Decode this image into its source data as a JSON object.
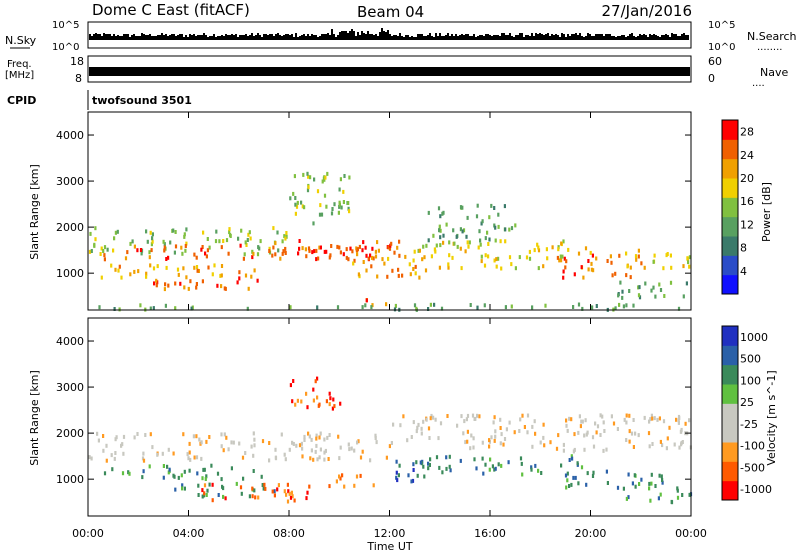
{
  "header": {
    "station": "Dome C East (fitACF)",
    "beam": "Beam 04",
    "date": "27/Jan/2016"
  },
  "nsky_panel": {
    "left_label": "N.Sky",
    "left_ticks": [
      "10^5",
      "10^0"
    ],
    "right_ticks": [
      "10^5",
      "10^0"
    ],
    "right_label": "N.Search",
    "right_dots": "........"
  },
  "freq_panel": {
    "label_line1": "Freq.",
    "label_line2": "[MHz]",
    "left_ticks": [
      "18",
      "8"
    ],
    "right_ticks": [
      "60",
      "0"
    ],
    "right_label": "Nave",
    "right_dots": "...."
  },
  "cpid_panel": {
    "label": "CPID",
    "value": "twofsound 3501"
  },
  "colors": {
    "power": [
      "#1010ff",
      "#2a4cc8",
      "#3a7a6a",
      "#58a060",
      "#80c040",
      "#f0d000",
      "#f0a000",
      "#f06000",
      "#ff0000"
    ],
    "velocity": [
      "#ff0000",
      "#ff5a00",
      "#ff9a20",
      "#c8c8c0",
      "#c8c8c0",
      "#60c040",
      "#3a8a5a",
      "#2a60a8",
      "#2030c0"
    ]
  },
  "chart_data": [
    {
      "type": "heatmap",
      "title": "",
      "xlabel": "",
      "ylabel": "Slant Range [km]",
      "x_ticks": [
        "00:00",
        "04:00",
        "08:00",
        "12:00",
        "16:00",
        "20:00",
        "00:00"
      ],
      "y_ticks": [
        "1000",
        "2000",
        "3000",
        "4000"
      ],
      "ylim": [
        200,
        4500
      ],
      "xlim_hours": [
        0,
        24
      ],
      "colorbar": {
        "label": "Power [dB]",
        "ticks": [
          "4",
          "8",
          "12",
          "16",
          "20",
          "24",
          "28"
        ],
        "range": [
          0,
          30
        ]
      },
      "bands": [
        {
          "t0": 0.0,
          "t1": 8.0,
          "r0": 1400,
          "r1": 2000,
          "value": 16
        },
        {
          "t0": 0.5,
          "t1": 12.0,
          "r0": 1300,
          "r1": 1600,
          "value": 26
        },
        {
          "t0": 0.5,
          "t1": 7.0,
          "r0": 900,
          "r1": 1200,
          "value": 20
        },
        {
          "t0": 2.5,
          "t1": 7.0,
          "r0": 600,
          "r1": 900,
          "value": 24
        },
        {
          "t0": 7.0,
          "t1": 12.5,
          "r0": 1300,
          "r1": 1700,
          "value": 26
        },
        {
          "t0": 8.0,
          "t1": 10.5,
          "r0": 2000,
          "r1": 3200,
          "value": 14
        },
        {
          "t0": 10.5,
          "t1": 13.5,
          "r0": 900,
          "r1": 1500,
          "value": 22
        },
        {
          "t0": 11.0,
          "t1": 12.5,
          "r0": 300,
          "r1": 450,
          "value": 26
        },
        {
          "t0": 13.0,
          "t1": 20.0,
          "r0": 1100,
          "r1": 1700,
          "value": 18
        },
        {
          "t0": 13.5,
          "t1": 17.0,
          "r0": 1700,
          "r1": 2500,
          "value": 12
        },
        {
          "t0": 18.5,
          "t1": 22.0,
          "r0": 900,
          "r1": 1400,
          "value": 24
        },
        {
          "t0": 21.0,
          "t1": 24.0,
          "r0": 1100,
          "r1": 1500,
          "value": 18
        },
        {
          "t0": 21.0,
          "t1": 24.0,
          "r0": 400,
          "r1": 800,
          "value": 12
        },
        {
          "t0": 0.0,
          "t1": 24.0,
          "r0": 200,
          "r1": 320,
          "value": 10
        }
      ]
    },
    {
      "type": "heatmap",
      "title": "",
      "xlabel": "Time UT",
      "ylabel": "Slant Range [km]",
      "x_ticks": [
        "00:00",
        "04:00",
        "08:00",
        "12:00",
        "16:00",
        "20:00",
        "00:00"
      ],
      "y_ticks": [
        "1000",
        "2000",
        "3000",
        "4000"
      ],
      "ylim": [
        200,
        4500
      ],
      "xlim_hours": [
        0,
        24
      ],
      "colorbar": {
        "label": "Velocity [m s^-1]",
        "ticks": [
          "1000",
          "500",
          "100",
          "25",
          "-25",
          "-100",
          "-500",
          "-1000"
        ],
        "range": [
          -1000,
          1000
        ]
      },
      "bands": [
        {
          "t0": 0.0,
          "t1": 12.0,
          "r0": 1400,
          "r1": 2000,
          "value": 0
        },
        {
          "t0": 12.0,
          "t1": 24.0,
          "r0": 1600,
          "r1": 2400,
          "value": 0
        },
        {
          "t0": 0.5,
          "t1": 7.0,
          "r0": 1000,
          "r1": 1300,
          "value": 150
        },
        {
          "t0": 3.0,
          "t1": 7.5,
          "r0": 600,
          "r1": 900,
          "value": 300
        },
        {
          "t0": 4.5,
          "t1": 9.0,
          "r0": 500,
          "r1": 900,
          "value": -200
        },
        {
          "t0": 8.0,
          "t1": 10.0,
          "r0": 2500,
          "r1": 3200,
          "value": -150
        },
        {
          "t0": 9.5,
          "t1": 11.5,
          "r0": 800,
          "r1": 1100,
          "value": -300
        },
        {
          "t0": 12.0,
          "t1": 13.5,
          "r0": 900,
          "r1": 1400,
          "value": 600
        },
        {
          "t0": 13.0,
          "t1": 20.0,
          "r0": 1100,
          "r1": 1500,
          "value": 350
        },
        {
          "t0": 18.5,
          "t1": 23.0,
          "r0": 800,
          "r1": 1200,
          "value": 400
        },
        {
          "t0": 21.0,
          "t1": 24.0,
          "r0": 500,
          "r1": 800,
          "value": 300
        }
      ]
    }
  ],
  "axis_labels": {
    "time": "Time UT"
  }
}
